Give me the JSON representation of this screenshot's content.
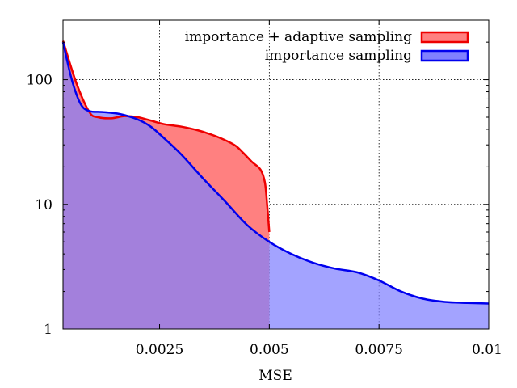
{
  "chart_data": {
    "type": "area",
    "title": "",
    "xlabel": "MSE",
    "ylabel": "",
    "xlim": [
      0.0003,
      0.01
    ],
    "ylim": [
      1,
      300
    ],
    "yscale": "log",
    "grid": true,
    "legend_position": "top-right",
    "x_ticks": [
      0.0025,
      0.005,
      0.0075,
      0.01
    ],
    "x_tick_labels": [
      "0.0025",
      "0.005",
      "0.0075",
      "0.01"
    ],
    "y_ticks": [
      1,
      10,
      100
    ],
    "y_tick_labels": [
      "1",
      "10",
      "100"
    ],
    "series": [
      {
        "name": "importance + adaptive sampling",
        "line_color": "#ee0000",
        "fill_color": "#ff8080",
        "x": [
          0.0003,
          0.0006,
          0.0009,
          0.0011,
          0.0014,
          0.0017,
          0.002,
          0.0023,
          0.0026,
          0.003,
          0.0034,
          0.0038,
          0.0042,
          0.0044,
          0.0046,
          0.0048,
          0.0049,
          0.00495,
          0.005
        ],
        "y": [
          205,
          95,
          55,
          50,
          49,
          51,
          50,
          47,
          44,
          42,
          39,
          35,
          30,
          26,
          22,
          19,
          15,
          10,
          6
        ]
      },
      {
        "name": "importance sampling",
        "line_color": "#0000ee",
        "fill_color": "#8080ff",
        "x": [
          0.0003,
          0.0005,
          0.0007,
          0.0009,
          0.0012,
          0.0016,
          0.002,
          0.0023,
          0.0026,
          0.003,
          0.0035,
          0.004,
          0.0045,
          0.005,
          0.0055,
          0.006,
          0.0065,
          0.007,
          0.0075,
          0.008,
          0.0085,
          0.009,
          0.0095,
          0.01
        ],
        "y": [
          200,
          100,
          64,
          56,
          55,
          53,
          48,
          42,
          34,
          25,
          16,
          10.5,
          6.8,
          5,
          4,
          3.4,
          3.05,
          2.85,
          2.45,
          2.0,
          1.75,
          1.65,
          1.62,
          1.6
        ]
      }
    ]
  }
}
